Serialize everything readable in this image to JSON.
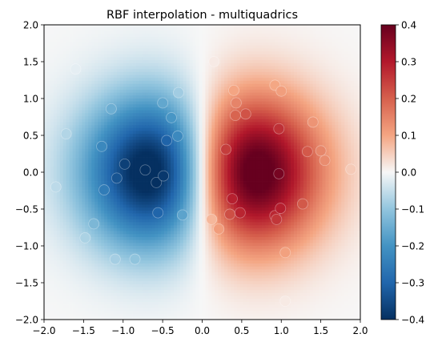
{
  "chart_data": {
    "type": "heatmap",
    "title": "RBF interpolation - multiquadrics",
    "xlabel": "",
    "ylabel": "",
    "xlim": [
      -2.0,
      2.0
    ],
    "ylim": [
      -2.0,
      2.0
    ],
    "grid": false,
    "x_ticks": [
      "−2.0",
      "−1.5",
      "−1.0",
      "−0.5",
      "0.0",
      "0.5",
      "1.0",
      "1.5",
      "2.0"
    ],
    "y_ticks": [
      "−2.0",
      "−1.5",
      "−1.0",
      "−0.5",
      "0.0",
      "0.5",
      "1.0",
      "1.5",
      "2.0"
    ],
    "colormap": "RdBu_r",
    "colorbar": {
      "min": -0.4,
      "max": 0.4,
      "ticks": [
        "0.4",
        "0.3",
        "0.2",
        "0.1",
        "0.0",
        "−0.1",
        "−0.2",
        "−0.3",
        "−0.4"
      ],
      "tick_values": [
        0.4,
        0.3,
        0.2,
        0.1,
        0.0,
        -0.1,
        -0.2,
        -0.3,
        -0.4
      ]
    },
    "surface_function": "x * exp(-x^2 - y^2)",
    "grid_resolution": 100,
    "sample_points": [
      {
        "x": -1.27,
        "y": 0.35
      },
      {
        "x": -1.08,
        "y": -0.08
      },
      {
        "x": -0.98,
        "y": 0.11
      },
      {
        "x": -0.72,
        "y": 0.03
      },
      {
        "x": -0.58,
        "y": -0.14
      },
      {
        "x": -0.49,
        "y": -0.05
      },
      {
        "x": -0.39,
        "y": 0.74
      },
      {
        "x": -0.45,
        "y": 0.43
      },
      {
        "x": -0.31,
        "y": 0.49
      },
      {
        "x": -1.24,
        "y": -0.24
      },
      {
        "x": -1.37,
        "y": -0.7
      },
      {
        "x": -0.56,
        "y": -0.55
      },
      {
        "x": -0.25,
        "y": -0.58
      },
      {
        "x": -1.48,
        "y": -0.89
      },
      {
        "x": -1.15,
        "y": 0.86
      },
      {
        "x": -0.85,
        "y": -1.18
      },
      {
        "x": -1.1,
        "y": -1.18
      },
      {
        "x": -0.3,
        "y": 1.08
      },
      {
        "x": -0.5,
        "y": 0.94
      },
      {
        "x": -1.72,
        "y": 0.52
      },
      {
        "x": -1.85,
        "y": -0.2
      },
      {
        "x": 0.12,
        "y": -0.64
      },
      {
        "x": 0.21,
        "y": -0.77
      },
      {
        "x": 0.3,
        "y": 0.31
      },
      {
        "x": 0.38,
        "y": -0.36
      },
      {
        "x": 0.35,
        "y": -0.57
      },
      {
        "x": 0.48,
        "y": -0.55
      },
      {
        "x": 0.42,
        "y": 0.77
      },
      {
        "x": 0.55,
        "y": 0.79
      },
      {
        "x": 0.97,
        "y": 0.59
      },
      {
        "x": 0.97,
        "y": -0.02
      },
      {
        "x": 0.92,
        "y": -0.59
      },
      {
        "x": 0.99,
        "y": -0.49
      },
      {
        "x": 1.33,
        "y": 0.28
      },
      {
        "x": 1.5,
        "y": 0.29
      },
      {
        "x": 1.55,
        "y": 0.16
      },
      {
        "x": 1.27,
        "y": -0.43
      },
      {
        "x": 0.94,
        "y": -0.64
      },
      {
        "x": 1.05,
        "y": -1.09
      },
      {
        "x": 1.4,
        "y": 0.68
      },
      {
        "x": 0.92,
        "y": 1.18
      },
      {
        "x": 1.0,
        "y": 1.1
      },
      {
        "x": 0.4,
        "y": 1.11
      },
      {
        "x": 0.43,
        "y": 0.94
      },
      {
        "x": 1.88,
        "y": 0.04
      },
      {
        "x": 1.05,
        "y": -1.75
      },
      {
        "x": 0.15,
        "y": 1.5
      },
      {
        "x": -1.6,
        "y": 1.4
      }
    ]
  }
}
